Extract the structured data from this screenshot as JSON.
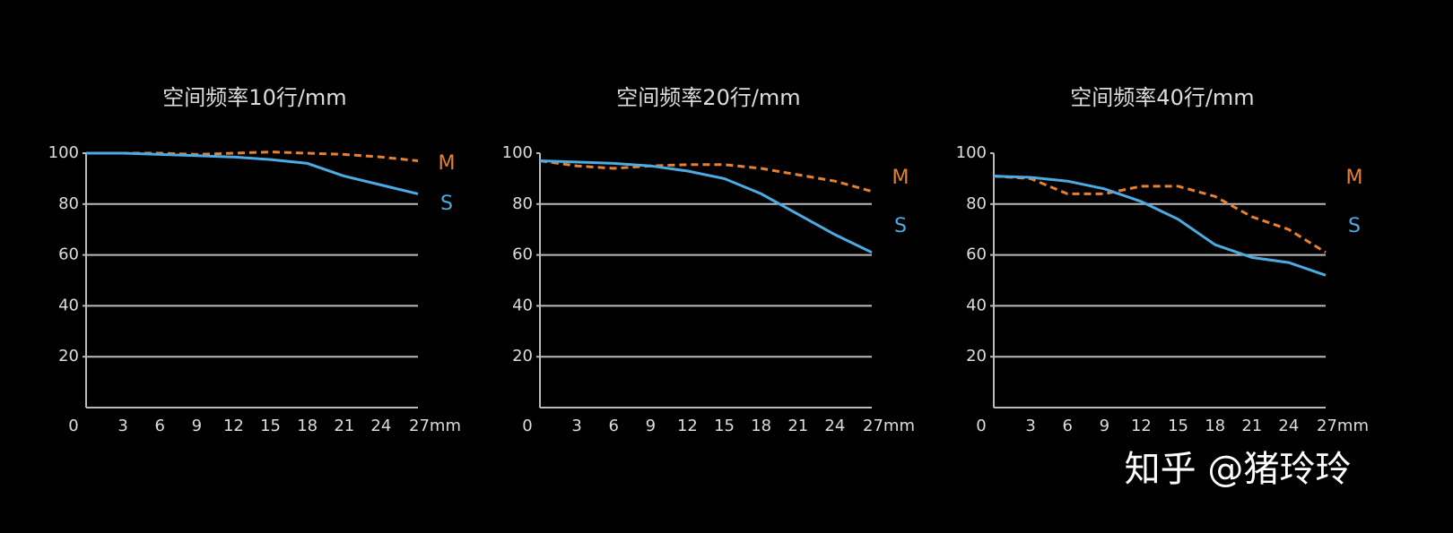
{
  "chart_data": [
    {
      "type": "line",
      "title": "空间频率10行/mm",
      "x": [
        0,
        3,
        6,
        9,
        12,
        15,
        18,
        21,
        24,
        27
      ],
      "series": [
        {
          "name": "M",
          "color": "#e8812f",
          "dashed": true,
          "values": [
            100,
            100,
            100,
            99.5,
            100,
            100.5,
            100,
            99.5,
            98.5,
            97
          ]
        },
        {
          "name": "S",
          "color": "#4cabe2",
          "dashed": false,
          "values": [
            100,
            100,
            99.5,
            99,
            98.5,
            97.5,
            96,
            91,
            87.5,
            84
          ]
        }
      ],
      "xlim": [
        0,
        27
      ],
      "xticks": [
        0,
        3,
        6,
        9,
        12,
        15,
        18,
        21,
        24,
        {
          "value": 27,
          "label": "27mm"
        }
      ],
      "ylim": [
        0,
        100
      ],
      "yticks": [
        20,
        40,
        60,
        80,
        100
      ],
      "grid": true
    },
    {
      "type": "line",
      "title": "空间频率20行/mm",
      "x": [
        0,
        3,
        6,
        9,
        12,
        15,
        18,
        21,
        24,
        27
      ],
      "series": [
        {
          "name": "M",
          "color": "#e8812f",
          "dashed": true,
          "values": [
            97,
            95,
            94,
            95,
            95.5,
            95.5,
            94,
            91.5,
            89,
            85
          ]
        },
        {
          "name": "S",
          "color": "#4cabe2",
          "dashed": false,
          "values": [
            97,
            96.5,
            96,
            95,
            93,
            90,
            84,
            76,
            68,
            61
          ]
        }
      ],
      "xlim": [
        0,
        27
      ],
      "xticks": [
        0,
        3,
        6,
        9,
        12,
        15,
        18,
        21,
        24,
        {
          "value": 27,
          "label": "27mm"
        }
      ],
      "ylim": [
        0,
        100
      ],
      "yticks": [
        20,
        40,
        60,
        80,
        100
      ],
      "grid": true
    },
    {
      "type": "line",
      "title": "空间频率40行/mm",
      "x": [
        0,
        3,
        6,
        9,
        12,
        15,
        18,
        21,
        24,
        27
      ],
      "series": [
        {
          "name": "M",
          "color": "#e8812f",
          "dashed": true,
          "values": [
            91,
            90,
            84,
            84,
            87,
            87,
            83,
            75,
            70,
            61
          ]
        },
        {
          "name": "S",
          "color": "#4cabe2",
          "dashed": false,
          "values": [
            91,
            90.5,
            89,
            86,
            81,
            74,
            64,
            59,
            57,
            52
          ]
        }
      ],
      "xlim": [
        0,
        27
      ],
      "xticks": [
        0,
        3,
        6,
        9,
        12,
        15,
        18,
        21,
        24,
        {
          "value": 27,
          "label": "27mm"
        }
      ],
      "ylim": [
        0,
        100
      ],
      "yticks": [
        20,
        40,
        60,
        80,
        100
      ],
      "grid": true
    }
  ],
  "watermark": "知乎 @猪玲玲"
}
